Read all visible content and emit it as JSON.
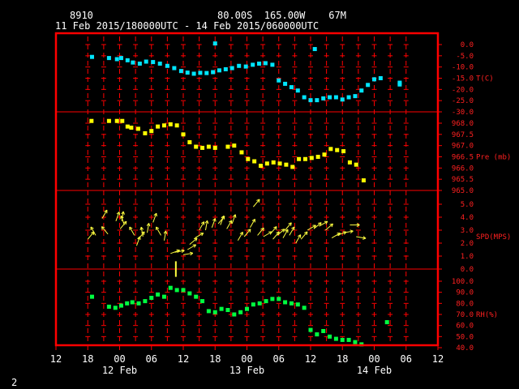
{
  "header": {
    "station_id": "8910",
    "location": "80.00S  165.00W    67M",
    "time_range": "11 Feb 2015/180000UTC - 14 Feb 2015/060000UTC"
  },
  "footer": {
    "page_number": "2"
  },
  "colors": {
    "frame": "#ff0000",
    "temperature": "#00e5ff",
    "pressure": "#ffff00",
    "wind": "#ffff40",
    "humidity": "#00ff40",
    "axis_text": "#ff2020",
    "text": "#ffffff"
  },
  "chart_data": {
    "type": "scatter",
    "x_axis": {
      "unit": "hours since 11 Feb 2015 12 UTC",
      "range": [
        0,
        72
      ],
      "tick_labels": [
        "12",
        "18",
        "00",
        "06",
        "12",
        "18",
        "00",
        "06",
        "12",
        "18",
        "00",
        "06",
        "12"
      ],
      "date_labels": [
        {
          "label": "12 Feb",
          "at": 12
        },
        {
          "label": "13 Feb",
          "at": 36
        },
        {
          "label": "14 Feb",
          "at": 60
        }
      ]
    },
    "panels": [
      {
        "name": "T(C)",
        "key": "temperature",
        "ylim": [
          -30,
          0
        ],
        "ticks": [
          "0.0",
          "-5.0",
          "-10.0",
          "-15.0",
          "-20.0",
          "-25.0",
          "-30.0"
        ],
        "tick_values": [
          0,
          -5,
          -10,
          -15,
          -20,
          -25,
          -30
        ],
        "points": [
          [
            6.8,
            -5.5
          ],
          [
            10,
            -6
          ],
          [
            11.5,
            -6.5
          ],
          [
            12.3,
            -6
          ],
          [
            13.5,
            -7
          ],
          [
            14.5,
            -8
          ],
          [
            15.8,
            -8.5
          ],
          [
            17,
            -7.6
          ],
          [
            18.3,
            -7.8
          ],
          [
            19.6,
            -8.5
          ],
          [
            21,
            -9.5
          ],
          [
            22.3,
            -10.5
          ],
          [
            23.6,
            -11.8
          ],
          [
            24.8,
            -12.5
          ],
          [
            26,
            -13
          ],
          [
            27.2,
            -12.6
          ],
          [
            28.4,
            -12.7
          ],
          [
            29.6,
            -12.3
          ],
          [
            30.8,
            -11.5
          ],
          [
            32,
            -11
          ],
          [
            33.2,
            -10.5
          ],
          [
            34.5,
            -9.5
          ],
          [
            35.8,
            -9.8
          ],
          [
            37.1,
            -9
          ],
          [
            38.3,
            -8.5
          ],
          [
            39.5,
            -8.3
          ],
          [
            40.8,
            -9
          ],
          [
            42,
            -16
          ],
          [
            43.2,
            -17.5
          ],
          [
            44.4,
            -19
          ],
          [
            45.6,
            -20.5
          ],
          [
            46.8,
            -23.5
          ],
          [
            48,
            -24.8
          ],
          [
            49.2,
            -24.8
          ],
          [
            50.4,
            -24
          ],
          [
            51.6,
            -23.5
          ],
          [
            52.8,
            -23.5
          ],
          [
            54,
            -24.5
          ],
          [
            55.2,
            -23.5
          ],
          [
            56.4,
            -23
          ],
          [
            57.6,
            -20.5
          ],
          [
            58.8,
            -18
          ],
          [
            60,
            -15.5
          ],
          [
            61.2,
            -15
          ],
          [
            64.8,
            -17
          ],
          [
            64.8,
            -17.8
          ],
          [
            30,
            0.5
          ],
          [
            48.8,
            -2
          ]
        ]
      },
      {
        "name": "Pre (mb)",
        "key": "pressure",
        "ylim": [
          965.0,
          968.0
        ],
        "ticks": [
          "968.0",
          "967.5",
          "967.0",
          "966.5",
          "966.0",
          "965.5",
          "965.0"
        ],
        "tick_values": [
          968.0,
          967.5,
          967.0,
          966.5,
          966.0,
          965.5,
          965.0
        ],
        "points": [
          [
            6.7,
            968.1
          ],
          [
            10,
            968.1
          ],
          [
            11.5,
            968.1
          ],
          [
            12.5,
            968.1
          ],
          [
            13.5,
            967.85
          ],
          [
            14.2,
            967.8
          ],
          [
            15.5,
            967.75
          ],
          [
            16.8,
            967.55
          ],
          [
            18,
            967.65
          ],
          [
            19.2,
            967.85
          ],
          [
            20.4,
            967.9
          ],
          [
            21.6,
            967.95
          ],
          [
            22.8,
            967.9
          ],
          [
            24,
            967.5
          ],
          [
            25.2,
            967.15
          ],
          [
            26.4,
            966.95
          ],
          [
            27.6,
            966.9
          ],
          [
            28.8,
            966.95
          ],
          [
            30,
            966.9
          ],
          [
            32.4,
            966.95
          ],
          [
            33.6,
            967.0
          ],
          [
            35,
            966.7
          ],
          [
            36.2,
            966.4
          ],
          [
            37.4,
            966.3
          ],
          [
            38.6,
            966.1
          ],
          [
            39.8,
            966.2
          ],
          [
            41,
            966.25
          ],
          [
            42.2,
            966.2
          ],
          [
            43.4,
            966.15
          ],
          [
            44.6,
            966.05
          ],
          [
            45.8,
            966.4
          ],
          [
            47,
            966.4
          ],
          [
            48.2,
            966.45
          ],
          [
            49.4,
            966.5
          ],
          [
            50.6,
            966.6
          ],
          [
            51.8,
            966.85
          ],
          [
            53,
            966.8
          ],
          [
            54.2,
            966.75
          ],
          [
            55.4,
            966.25
          ],
          [
            56.6,
            966.15
          ],
          [
            58,
            965.45
          ]
        ]
      },
      {
        "name": "SPD(MPS)",
        "key": "wind",
        "ylim": [
          0.0,
          5.0
        ],
        "ticks": [
          "5.0",
          "4.0",
          "3.0",
          "2.0",
          "1.0",
          "0.0"
        ],
        "tick_values": [
          5,
          4,
          3,
          2,
          1,
          0
        ],
        "barbs": [
          [
            6.0,
            2.3,
            40
          ],
          [
            7.5,
            2.6,
            -30
          ],
          [
            8.7,
            3.9,
            30
          ],
          [
            9.8,
            2.7,
            -40
          ],
          [
            11.3,
            3.7,
            20
          ],
          [
            12.1,
            3.1,
            40
          ],
          [
            12.4,
            3.7,
            10
          ],
          [
            12.9,
            3.4,
            -20
          ],
          [
            14.8,
            2.6,
            -30
          ],
          [
            15.2,
            1.8,
            20
          ],
          [
            15.5,
            2.3,
            40
          ],
          [
            16.4,
            2.5,
            -10
          ],
          [
            17.2,
            2.8,
            10
          ],
          [
            18.3,
            3.6,
            20
          ],
          [
            19.8,
            2.6,
            -30
          ],
          [
            20.4,
            2.2,
            10
          ],
          [
            21.6,
            1.2,
            70
          ],
          [
            22.4,
            1.3,
            80
          ],
          [
            24.0,
            1.1,
            80
          ],
          [
            24.8,
            1.5,
            60
          ],
          [
            25.2,
            1.9,
            50
          ],
          [
            26.2,
            2.4,
            60
          ],
          [
            27.0,
            3.0,
            30
          ],
          [
            28.2,
            3.0,
            10
          ],
          [
            29.4,
            3.2,
            20
          ],
          [
            30.6,
            3.5,
            40
          ],
          [
            31.0,
            3.4,
            20
          ],
          [
            32.2,
            3.1,
            30
          ],
          [
            33.2,
            3.5,
            20
          ],
          [
            34.3,
            2.2,
            30
          ],
          [
            35.5,
            2.5,
            40
          ],
          [
            36.6,
            3.2,
            30
          ],
          [
            37.2,
            4.8,
            40
          ],
          [
            38.0,
            2.6,
            40
          ],
          [
            39.1,
            2.5,
            60
          ],
          [
            40.4,
            2.7,
            40
          ],
          [
            40.9,
            2.3,
            40
          ],
          [
            41.7,
            2.6,
            50
          ],
          [
            42.8,
            2.4,
            30
          ],
          [
            43.2,
            3.0,
            40
          ],
          [
            44.0,
            2.6,
            30
          ],
          [
            45.2,
            2.0,
            30
          ],
          [
            46.2,
            2.3,
            40
          ],
          [
            47.4,
            3.0,
            60
          ],
          [
            48.6,
            3.1,
            50
          ],
          [
            49.6,
            3.3,
            60
          ],
          [
            50.8,
            3.0,
            50
          ],
          [
            52.0,
            2.4,
            60
          ],
          [
            53.0,
            2.6,
            70
          ],
          [
            54.2,
            2.8,
            80
          ],
          [
            55.4,
            3.4,
            90
          ],
          [
            56.6,
            2.5,
            100
          ]
        ],
        "calm_mark_at": 22.6
      },
      {
        "name": "RH(%)",
        "key": "humidity",
        "ylim": [
          40,
          100
        ],
        "ticks": [
          "100.0",
          "90.0",
          "80.0",
          "70.0",
          "60.0",
          "50.0",
          "40.0"
        ],
        "tick_values": [
          100,
          90,
          80,
          70,
          60,
          50,
          40
        ],
        "points": [
          [
            6.8,
            86
          ],
          [
            10,
            77
          ],
          [
            11.2,
            76
          ],
          [
            12.3,
            78
          ],
          [
            13.4,
            80
          ],
          [
            14.4,
            81
          ],
          [
            15.6,
            80
          ],
          [
            16.8,
            82
          ],
          [
            18,
            85
          ],
          [
            19.2,
            88
          ],
          [
            20.4,
            86
          ],
          [
            21.6,
            94
          ],
          [
            22.8,
            92
          ],
          [
            24,
            92
          ],
          [
            25.2,
            89
          ],
          [
            26.4,
            86
          ],
          [
            27.6,
            82
          ],
          [
            28.8,
            73
          ],
          [
            30,
            72
          ],
          [
            31.2,
            75
          ],
          [
            32.4,
            74
          ],
          [
            33.6,
            70
          ],
          [
            34.8,
            72
          ],
          [
            36,
            75
          ],
          [
            37.2,
            79
          ],
          [
            38.4,
            80
          ],
          [
            39.6,
            82
          ],
          [
            40.8,
            84
          ],
          [
            42,
            84
          ],
          [
            43.2,
            81
          ],
          [
            44.4,
            80
          ],
          [
            45.6,
            79
          ],
          [
            46.8,
            76
          ],
          [
            48,
            56
          ],
          [
            49.2,
            52
          ],
          [
            50.4,
            55
          ],
          [
            51.6,
            50
          ],
          [
            52.8,
            48
          ],
          [
            54,
            47
          ],
          [
            55.2,
            47
          ],
          [
            56.4,
            45
          ],
          [
            57.6,
            43
          ],
          [
            62.4,
            63
          ]
        ]
      }
    ]
  }
}
